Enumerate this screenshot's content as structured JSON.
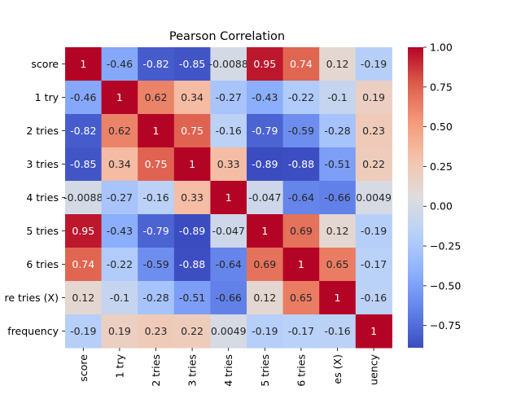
{
  "chart_data": {
    "type": "heatmap",
    "title": "Pearson Correlation",
    "row_labels": [
      "score",
      "1 try",
      "2 tries",
      "3 tries",
      "4 tries",
      "5 tries",
      "6 tries",
      "re tries (X)",
      "frequency"
    ],
    "col_labels": [
      "score",
      "1 try",
      "2 tries",
      "3 tries",
      "4 tries",
      "5 tries",
      "6 tries",
      "es (X)",
      "uency"
    ],
    "values": [
      [
        1,
        -0.46,
        -0.82,
        -0.85,
        -0.0088,
        0.95,
        0.74,
        0.12,
        -0.19
      ],
      [
        -0.46,
        1,
        0.62,
        0.34,
        -0.27,
        -0.43,
        -0.22,
        -0.1,
        0.19
      ],
      [
        -0.82,
        0.62,
        1,
        0.75,
        -0.16,
        -0.79,
        -0.59,
        -0.28,
        0.23
      ],
      [
        -0.85,
        0.34,
        0.75,
        1,
        0.33,
        -0.89,
        -0.88,
        -0.51,
        0.22
      ],
      [
        -0.0088,
        -0.27,
        -0.16,
        0.33,
        1,
        -0.047,
        -0.64,
        -0.66,
        0.0049
      ],
      [
        0.95,
        -0.43,
        -0.79,
        -0.89,
        -0.047,
        1,
        0.69,
        0.12,
        -0.19
      ],
      [
        0.74,
        -0.22,
        -0.59,
        -0.88,
        -0.64,
        0.69,
        1,
        0.65,
        -0.17
      ],
      [
        0.12,
        -0.1,
        -0.28,
        -0.51,
        -0.66,
        0.12,
        0.65,
        1,
        -0.16
      ],
      [
        -0.19,
        0.19,
        0.23,
        0.22,
        0.0049,
        -0.19,
        -0.17,
        -0.16,
        1
      ]
    ],
    "colormap": "coolwarm",
    "vmin": -0.89,
    "vmax": 1,
    "colorbar_ticks": [
      -0.75,
      -0.5,
      -0.25,
      0.0,
      0.25,
      0.5,
      0.75,
      1.0
    ],
    "colorbar_tick_labels": [
      "−0.75",
      "−0.50",
      "−0.25",
      "0.00",
      "0.25",
      "0.50",
      "0.75",
      "1.00"
    ]
  }
}
